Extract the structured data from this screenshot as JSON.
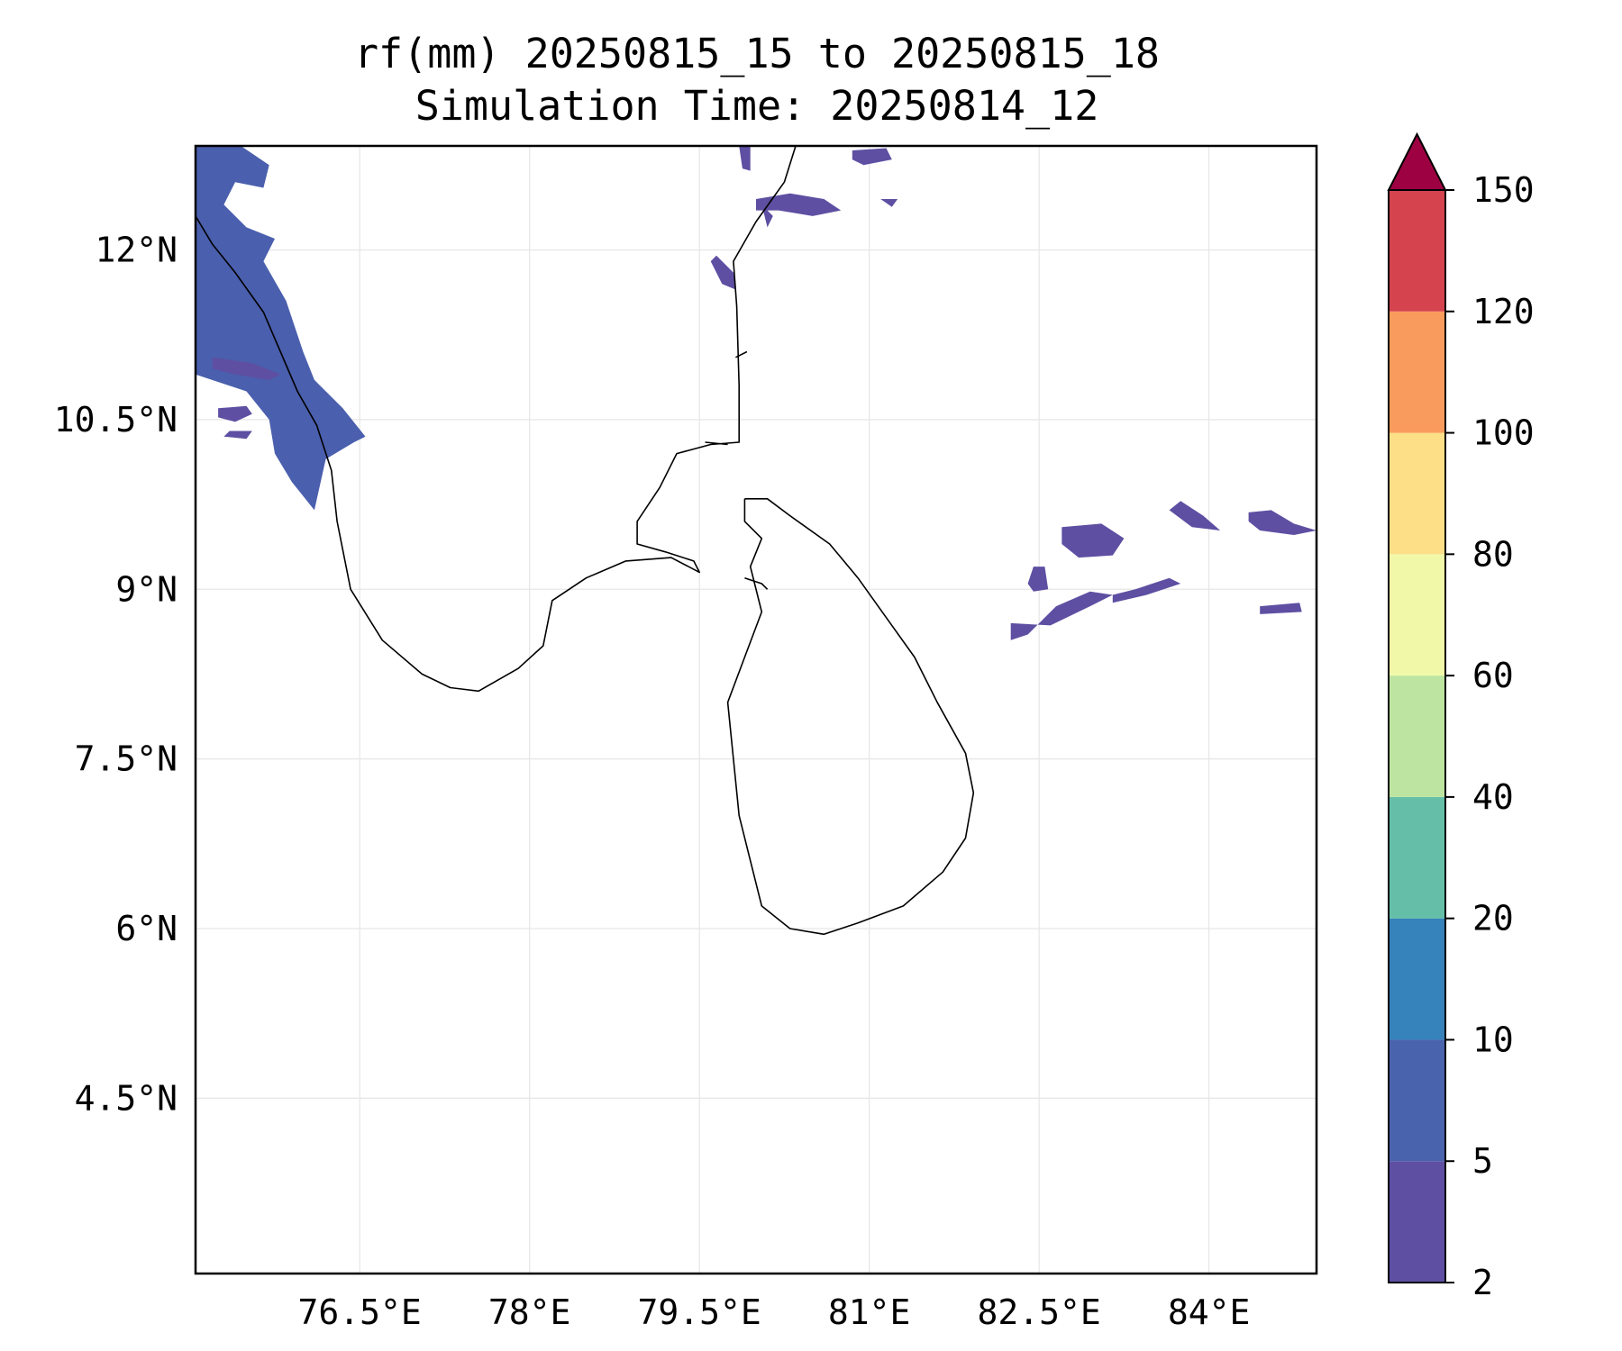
{
  "title": {
    "line1": "rf(mm) 20250815_15 to 20250815_18",
    "line2": "Simulation Time: 20250814_12"
  },
  "map": {
    "lon_range": [
      75.05,
      84.95
    ],
    "lat_range": [
      2.95,
      12.92
    ],
    "x_ticks": [
      {
        "value": 76.5,
        "label": "76.5°E"
      },
      {
        "value": 78.0,
        "label": "78°E"
      },
      {
        "value": 79.5,
        "label": "79.5°E"
      },
      {
        "value": 81.0,
        "label": "81°E"
      },
      {
        "value": 82.5,
        "label": "82.5°E"
      },
      {
        "value": 84.0,
        "label": "84°E"
      }
    ],
    "y_ticks": [
      {
        "value": 12.0,
        "label": "12°N"
      },
      {
        "value": 10.5,
        "label": "10.5°N"
      },
      {
        "value": 9.0,
        "label": "9°N"
      },
      {
        "value": 7.5,
        "label": "7.5°N"
      },
      {
        "value": 6.0,
        "label": "6°N"
      },
      {
        "value": 4.5,
        "label": "4.5°N"
      }
    ],
    "grid": true,
    "coastline_color": "#000000",
    "coastlines": [
      [
        [
          75.05,
          12.3
        ],
        [
          75.2,
          12.05
        ],
        [
          75.4,
          11.8
        ],
        [
          75.65,
          11.45
        ],
        [
          75.8,
          11.1
        ],
        [
          75.95,
          10.75
        ],
        [
          76.12,
          10.45
        ],
        [
          76.25,
          10.05
        ],
        [
          76.3,
          9.6
        ],
        [
          76.42,
          9.0
        ],
        [
          76.7,
          8.55
        ],
        [
          77.05,
          8.25
        ],
        [
          77.3,
          8.13
        ],
        [
          77.55,
          8.1
        ],
        [
          77.9,
          8.3
        ],
        [
          78.12,
          8.5
        ],
        [
          78.2,
          8.9
        ],
        [
          78.5,
          9.1
        ],
        [
          78.85,
          9.25
        ],
        [
          79.25,
          9.28
        ],
        [
          79.5,
          9.15
        ],
        [
          79.45,
          9.25
        ],
        [
          79.2,
          9.33
        ],
        [
          78.95,
          9.4
        ],
        [
          78.95,
          9.6
        ],
        [
          79.15,
          9.9
        ],
        [
          79.3,
          10.2
        ],
        [
          79.6,
          10.28
        ],
        [
          79.85,
          10.3
        ],
        [
          79.85,
          10.8
        ],
        [
          79.83,
          11.5
        ],
        [
          79.8,
          11.9
        ],
        [
          80.0,
          12.25
        ],
        [
          80.25,
          12.6
        ],
        [
          80.35,
          12.92
        ]
      ],
      [
        [
          79.9,
          9.8
        ],
        [
          80.1,
          9.8
        ],
        [
          80.3,
          9.65
        ],
        [
          80.65,
          9.4
        ],
        [
          80.9,
          9.1
        ],
        [
          81.15,
          8.75
        ],
        [
          81.4,
          8.4
        ],
        [
          81.6,
          8.0
        ],
        [
          81.85,
          7.55
        ],
        [
          81.92,
          7.2
        ],
        [
          81.85,
          6.8
        ],
        [
          81.65,
          6.5
        ],
        [
          81.3,
          6.2
        ],
        [
          80.9,
          6.05
        ],
        [
          80.6,
          5.95
        ],
        [
          80.3,
          6.0
        ],
        [
          80.05,
          6.2
        ],
        [
          79.95,
          6.6
        ],
        [
          79.85,
          7.0
        ],
        [
          79.8,
          7.5
        ],
        [
          79.75,
          8.0
        ],
        [
          79.9,
          8.4
        ],
        [
          80.05,
          8.8
        ],
        [
          79.95,
          9.2
        ],
        [
          80.05,
          9.45
        ],
        [
          79.9,
          9.6
        ],
        [
          79.9,
          9.8
        ]
      ],
      [
        [
          79.9,
          9.1
        ],
        [
          80.05,
          9.05
        ],
        [
          80.1,
          9.0
        ]
      ],
      [
        [
          79.82,
          11.05
        ],
        [
          79.92,
          11.1
        ]
      ],
      [
        [
          79.55,
          10.3
        ],
        [
          79.75,
          10.28
        ]
      ]
    ],
    "rain_fill_color": "#5e4fa2",
    "rain_fill_color_heavy": "#4a5fad",
    "rain_regions": [
      [
        [
          75.05,
          12.92
        ],
        [
          75.45,
          12.92
        ],
        [
          75.7,
          12.75
        ],
        [
          75.65,
          12.55
        ],
        [
          75.4,
          12.6
        ],
        [
          75.3,
          12.4
        ],
        [
          75.5,
          12.2
        ],
        [
          75.75,
          12.1
        ],
        [
          75.65,
          11.9
        ],
        [
          75.85,
          11.55
        ],
        [
          76.0,
          11.1
        ],
        [
          76.1,
          10.85
        ],
        [
          76.35,
          10.6
        ],
        [
          76.55,
          10.35
        ],
        [
          76.45,
          10.3
        ],
        [
          76.2,
          10.15
        ],
        [
          76.1,
          9.7
        ],
        [
          75.9,
          9.95
        ],
        [
          75.75,
          10.2
        ],
        [
          75.7,
          10.5
        ],
        [
          75.5,
          10.75
        ],
        [
          75.05,
          10.9
        ]
      ],
      [
        [
          75.2,
          11.05
        ],
        [
          75.55,
          11.0
        ],
        [
          75.8,
          10.9
        ],
        [
          75.7,
          10.85
        ],
        [
          75.4,
          10.9
        ],
        [
          75.2,
          10.95
        ]
      ],
      [
        [
          75.25,
          10.6
        ],
        [
          75.5,
          10.62
        ],
        [
          75.55,
          10.55
        ],
        [
          75.4,
          10.48
        ],
        [
          75.25,
          10.52
        ]
      ],
      [
        [
          75.35,
          10.4
        ],
        [
          75.55,
          10.4
        ],
        [
          75.5,
          10.33
        ],
        [
          75.3,
          10.35
        ]
      ],
      [
        [
          79.85,
          12.92
        ],
        [
          79.95,
          12.92
        ],
        [
          79.95,
          12.7
        ],
        [
          79.88,
          12.72
        ]
      ],
      [
        [
          80.85,
          12.88
        ],
        [
          81.15,
          12.9
        ],
        [
          81.2,
          12.8
        ],
        [
          80.95,
          12.75
        ],
        [
          80.85,
          12.8
        ]
      ],
      [
        [
          80.0,
          12.45
        ],
        [
          80.3,
          12.5
        ],
        [
          80.6,
          12.45
        ],
        [
          80.75,
          12.35
        ],
        [
          80.5,
          12.3
        ],
        [
          80.2,
          12.35
        ],
        [
          80.0,
          12.35
        ]
      ],
      [
        [
          81.1,
          12.45
        ],
        [
          81.25,
          12.45
        ],
        [
          81.2,
          12.38
        ]
      ],
      [
        [
          80.05,
          12.4
        ],
        [
          80.15,
          12.3
        ],
        [
          80.1,
          12.2
        ]
      ],
      [
        [
          79.65,
          11.95
        ],
        [
          79.8,
          11.8
        ],
        [
          79.82,
          11.65
        ],
        [
          79.7,
          11.7
        ],
        [
          79.6,
          11.9
        ]
      ],
      [
        [
          82.7,
          9.55
        ],
        [
          83.05,
          9.58
        ],
        [
          83.25,
          9.45
        ],
        [
          83.15,
          9.3
        ],
        [
          82.85,
          9.28
        ],
        [
          82.7,
          9.4
        ]
      ],
      [
        [
          82.45,
          9.2
        ],
        [
          82.55,
          9.2
        ],
        [
          82.58,
          9.0
        ],
        [
          82.45,
          8.98
        ],
        [
          82.4,
          9.05
        ]
      ],
      [
        [
          82.25,
          8.7
        ],
        [
          82.6,
          8.68
        ],
        [
          82.95,
          8.85
        ],
        [
          83.15,
          8.95
        ],
        [
          82.95,
          8.98
        ],
        [
          82.65,
          8.85
        ],
        [
          82.4,
          8.6
        ],
        [
          82.25,
          8.55
        ]
      ],
      [
        [
          83.15,
          8.88
        ],
        [
          83.45,
          8.95
        ],
        [
          83.75,
          9.05
        ],
        [
          83.65,
          9.1
        ],
        [
          83.35,
          9.0
        ],
        [
          83.15,
          8.95
        ]
      ],
      [
        [
          83.65,
          9.7
        ],
        [
          83.85,
          9.55
        ],
        [
          84.1,
          9.52
        ],
        [
          83.95,
          9.65
        ],
        [
          83.75,
          9.78
        ]
      ],
      [
        [
          84.35,
          9.68
        ],
        [
          84.55,
          9.7
        ],
        [
          84.75,
          9.58
        ],
        [
          84.95,
          9.52
        ],
        [
          84.75,
          9.48
        ],
        [
          84.45,
          9.52
        ],
        [
          84.35,
          9.6
        ]
      ],
      [
        [
          84.45,
          8.85
        ],
        [
          84.8,
          8.88
        ],
        [
          84.82,
          8.8
        ],
        [
          84.45,
          8.78
        ]
      ]
    ]
  },
  "colorbar": {
    "extend_color": "#9e0142",
    "colors": [
      "#5e4fa2",
      "#4a63ad",
      "#3682ba",
      "#65bfa8",
      "#bde4a0",
      "#f1f9a9",
      "#fcdf87",
      "#f99b5c",
      "#d4434e"
    ],
    "ticks": [
      "2",
      "5",
      "10",
      "20",
      "40",
      "60",
      "80",
      "100",
      "120",
      "150"
    ]
  }
}
